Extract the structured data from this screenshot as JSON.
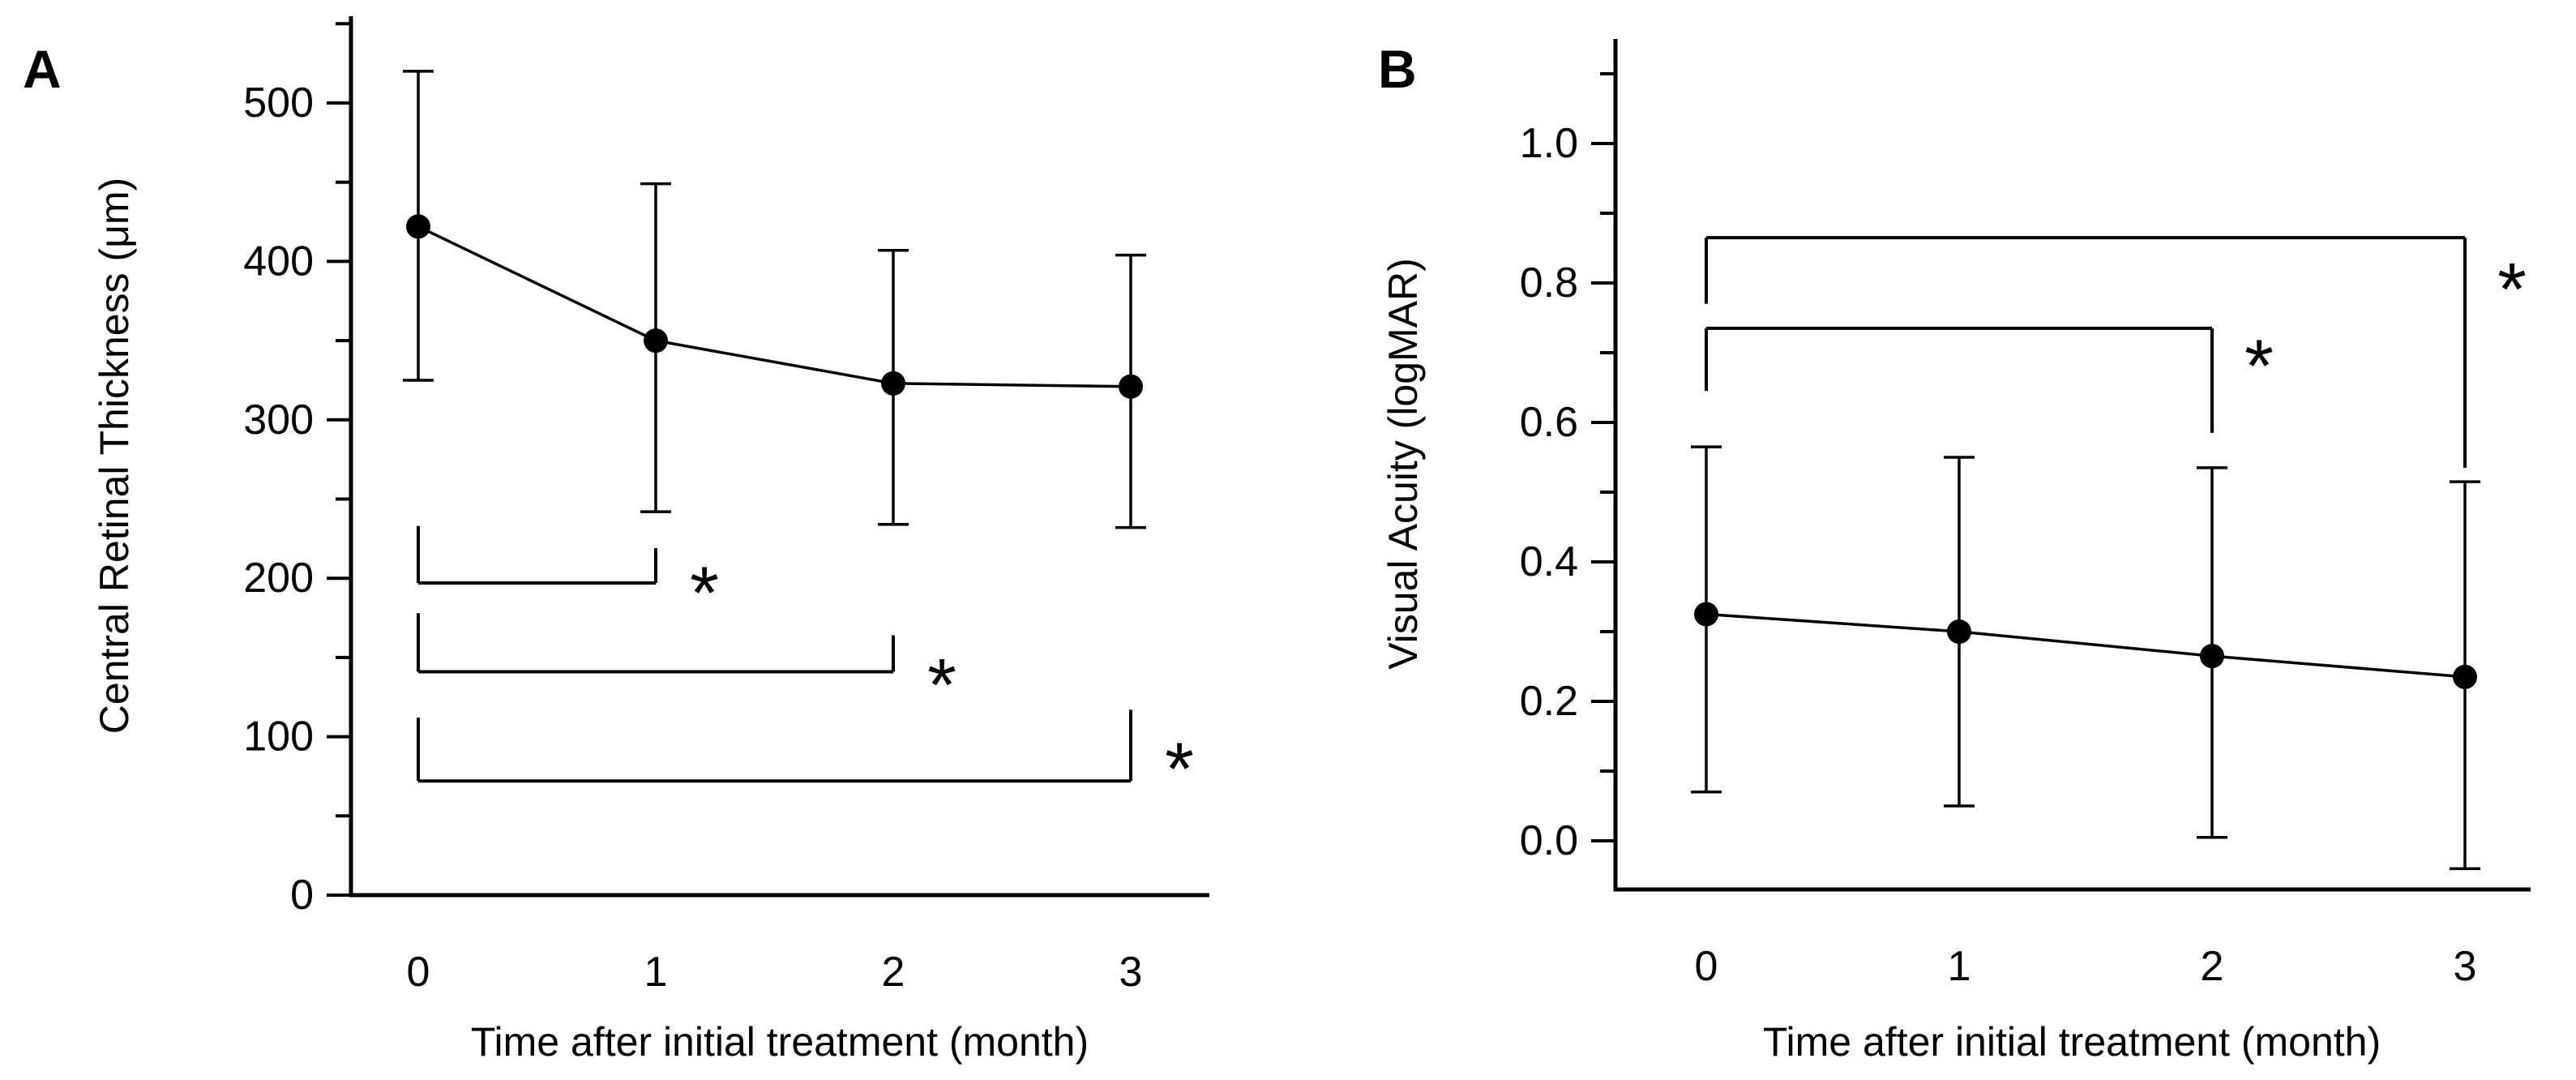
{
  "figure": {
    "background": "#ffffff",
    "ink_color": "#000000",
    "description": "Two-panel line chart of mean ± SD over time after initial treatment"
  },
  "chart_data": [
    {
      "type": "line",
      "panel_letter": "A",
      "title": "",
      "ylabel": "Central Retinal Thickness (μm)",
      "xlabel": "Time after initial treatment (month)",
      "x": [
        0,
        1,
        2,
        3
      ],
      "x_tick_labels": [
        "0",
        "1",
        "2",
        "3"
      ],
      "y_ticks": [
        0,
        100,
        200,
        300,
        400,
        500
      ],
      "y_tick_labels": [
        "0",
        "100",
        "200",
        "300",
        "400",
        "500"
      ],
      "y_ticks_minor": [
        50,
        150,
        250,
        350,
        450,
        550
      ],
      "ylim": [
        0,
        555
      ],
      "grid": false,
      "legend": "none",
      "series": [
        {
          "name": "mean central retinal thickness",
          "color": "#000000",
          "marker": "filled-circle",
          "values": [
            422,
            350,
            323,
            321
          ],
          "error_upper": [
            520,
            449,
            407,
            404
          ],
          "error_lower": [
            325,
            242,
            234,
            232
          ]
        }
      ],
      "significance_brackets": [
        {
          "from": 0,
          "to": 1,
          "bar": 197,
          "left_end": 233,
          "right_end": 219,
          "label": "*",
          "label_y": 199
        },
        {
          "from": 0,
          "to": 2,
          "bar": 141,
          "left_end": 178,
          "right_end": 164,
          "label": "*",
          "label_y": 141
        },
        {
          "from": 0,
          "to": 3,
          "bar": 72,
          "left_end": 112,
          "right_end": 117,
          "label": "*",
          "label_y": 88
        }
      ]
    },
    {
      "type": "line",
      "panel_letter": "B",
      "title": "",
      "ylabel": "Visual Acuity (logMAR)",
      "xlabel": "Time after initial treatment (month)",
      "x": [
        0,
        1,
        2,
        3
      ],
      "x_tick_labels": [
        "0",
        "1",
        "2",
        "3"
      ],
      "y_ticks": [
        0,
        0.2,
        0.4,
        0.6,
        0.8,
        1.0
      ],
      "y_tick_labels": [
        "0.0",
        "0.2",
        "0.4",
        "0.6",
        "0.8",
        "1.0"
      ],
      "y_ticks_minor": [
        0.1,
        0.3,
        0.5,
        0.7,
        0.9,
        1.1
      ],
      "ylim": [
        -0.07,
        1.15
      ],
      "grid": false,
      "legend": "none",
      "series": [
        {
          "name": "mean visual acuity",
          "color": "#000000",
          "marker": "filled-circle",
          "values": [
            0.325,
            0.3,
            0.265,
            0.235
          ],
          "error_upper": [
            0.565,
            0.55,
            0.535,
            0.515
          ],
          "error_lower": [
            0.07,
            0.05,
            0.005,
            -0.04
          ]
        }
      ],
      "significance_brackets": [
        {
          "from": 0,
          "to": 3,
          "bar": 0.865,
          "left_end": 0.77,
          "right_end": 0.535,
          "label": "*",
          "label_y": 0.81
        },
        {
          "from": 0,
          "to": 2,
          "bar": 0.735,
          "left_end": 0.645,
          "right_end": 0.585,
          "label": "*",
          "label_y": 0.7
        }
      ]
    }
  ]
}
